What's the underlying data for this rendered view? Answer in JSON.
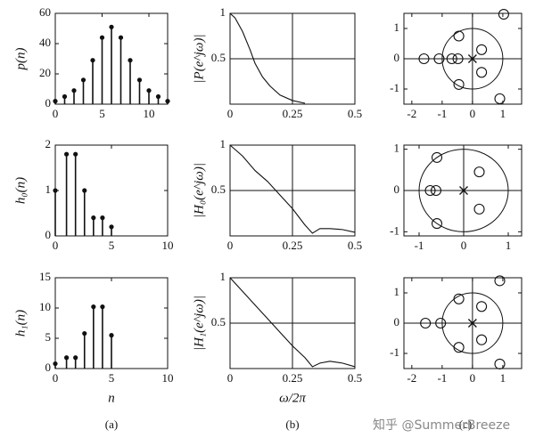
{
  "chart_data": [
    {
      "type": "stem",
      "ylabel": "p(n)",
      "x": [
        0,
        1,
        2,
        3,
        4,
        5,
        6,
        7,
        8,
        9,
        10,
        11,
        12
      ],
      "values": [
        2,
        5,
        9,
        16,
        29,
        44,
        51,
        44,
        29,
        16,
        9,
        5,
        2
      ],
      "xlim": [
        0,
        12
      ],
      "ylim": [
        0,
        60
      ],
      "xticks": [
        0,
        5,
        10
      ],
      "yticks": [
        0,
        20,
        40,
        60
      ]
    },
    {
      "type": "line",
      "ylabel": "|P(e^jω)|",
      "x": [
        0,
        0.02,
        0.05,
        0.08,
        0.1,
        0.13,
        0.16,
        0.2,
        0.25,
        0.3
      ],
      "values": [
        1,
        0.95,
        0.8,
        0.6,
        0.45,
        0.3,
        0.2,
        0.1,
        0.04,
        0.01
      ],
      "xlim": [
        0,
        0.5
      ],
      "ylim": [
        0,
        1
      ],
      "xticks": [
        0,
        0.25,
        0.5
      ],
      "yticks": [
        0.5,
        1
      ],
      "crosshair": [
        0.25,
        0.5
      ]
    },
    {
      "type": "scatter",
      "zeros": {
        "x": [
          -1.6,
          -1.1,
          -0.68,
          -0.48,
          -0.45,
          -0.45,
          0.3,
          0.3,
          1.03,
          0.9
        ],
        "y": [
          0,
          0,
          0,
          0,
          0.75,
          -0.85,
          0.3,
          -0.45,
          1.47,
          -1.32
        ]
      },
      "poles": {
        "x": [
          0
        ],
        "y": [
          0
        ]
      },
      "xlim": [
        -2.26,
        1.62
      ],
      "ylim": [
        -1.5,
        1.5
      ],
      "xticks": [
        -2,
        -1,
        0,
        1
      ],
      "yticks": [
        -1,
        0,
        1
      ],
      "crosshair": [
        0,
        0
      ]
    },
    {
      "type": "stem",
      "ylabel": "h₀(n)",
      "x": [
        0,
        1,
        1.8,
        2.6,
        3.4,
        4.2,
        5
      ],
      "values": [
        1,
        1.8,
        1.8,
        1,
        0.4,
        0.4,
        0.2
      ],
      "xlim": [
        0,
        10
      ],
      "ylim": [
        0,
        2
      ],
      "xticks": [
        0,
        5,
        10
      ],
      "yticks": [
        0,
        1,
        2
      ]
    },
    {
      "type": "line",
      "ylabel": "|H₀(e^jω)|",
      "x": [
        0,
        0.05,
        0.1,
        0.15,
        0.2,
        0.25,
        0.3,
        0.33,
        0.36,
        0.4,
        0.45,
        0.5
      ],
      "values": [
        1,
        0.88,
        0.72,
        0.6,
        0.45,
        0.3,
        0.12,
        0.03,
        0.08,
        0.08,
        0.07,
        0.04
      ],
      "xlim": [
        0,
        0.5
      ],
      "ylim": [
        0,
        1
      ],
      "xticks": [
        0,
        0.25,
        0.5
      ],
      "yticks": [
        0.5,
        1
      ],
      "crosshair": [
        0.25,
        0.5
      ]
    },
    {
      "type": "scatter",
      "zeros": {
        "x": [
          -0.75,
          -0.62,
          -0.6,
          -0.6,
          0.35,
          0.35
        ],
        "y": [
          0,
          0,
          0.8,
          -0.8,
          0.45,
          -0.45
        ]
      },
      "poles": {
        "x": [
          0
        ],
        "y": [
          0
        ]
      },
      "xlim": [
        -1.34,
        1.3
      ],
      "ylim": [
        -1.1,
        1.1
      ],
      "xticks": [
        -1,
        0,
        1
      ],
      "yticks": [
        -1,
        0,
        1
      ],
      "crosshair": [
        0,
        0
      ]
    },
    {
      "type": "stem",
      "ylabel": "h₁(n)",
      "xlabel": "n",
      "x": [
        0,
        1,
        1.8,
        2.6,
        3.4,
        4.2,
        5
      ],
      "values": [
        0.8,
        1.8,
        1.8,
        5.8,
        10.2,
        10.2,
        5.5
      ],
      "xlim": [
        0,
        10
      ],
      "ylim": [
        0,
        15
      ],
      "xticks": [
        0,
        5,
        10
      ],
      "yticks": [
        0,
        5,
        10,
        15
      ]
    },
    {
      "type": "line",
      "ylabel": "|H₁(e^jω)|",
      "xlabel": "ω/2π",
      "x": [
        0,
        0.05,
        0.1,
        0.15,
        0.2,
        0.25,
        0.3,
        0.33,
        0.36,
        0.4,
        0.45,
        0.5
      ],
      "values": [
        1,
        0.85,
        0.7,
        0.55,
        0.4,
        0.25,
        0.12,
        0.02,
        0.06,
        0.08,
        0.06,
        0.02
      ],
      "xlim": [
        0,
        0.5
      ],
      "ylim": [
        0,
        1
      ],
      "xticks": [
        0,
        0.25,
        0.5
      ],
      "yticks": [
        0.5,
        1
      ],
      "crosshair": [
        0.25,
        0.5
      ]
    },
    {
      "type": "scatter",
      "zeros": {
        "x": [
          -1.55,
          -1.05,
          -0.45,
          -0.45,
          0.3,
          0.3,
          0.9,
          0.9
        ],
        "y": [
          0,
          0,
          0.8,
          -0.8,
          0.55,
          -0.55,
          1.4,
          -1.35
        ]
      },
      "poles": {
        "x": [
          0
        ],
        "y": [
          0
        ]
      },
      "xlim": [
        -2.26,
        1.62
      ],
      "ylim": [
        -1.5,
        1.5
      ],
      "xticks": [
        -2,
        -1,
        0,
        1
      ],
      "yticks": [
        -1,
        0,
        1
      ],
      "crosshair": [
        0,
        0
      ]
    }
  ],
  "captions": [
    "(a)",
    "(b)",
    "(c)"
  ],
  "watermark": "知乎 @SummerBreeze"
}
